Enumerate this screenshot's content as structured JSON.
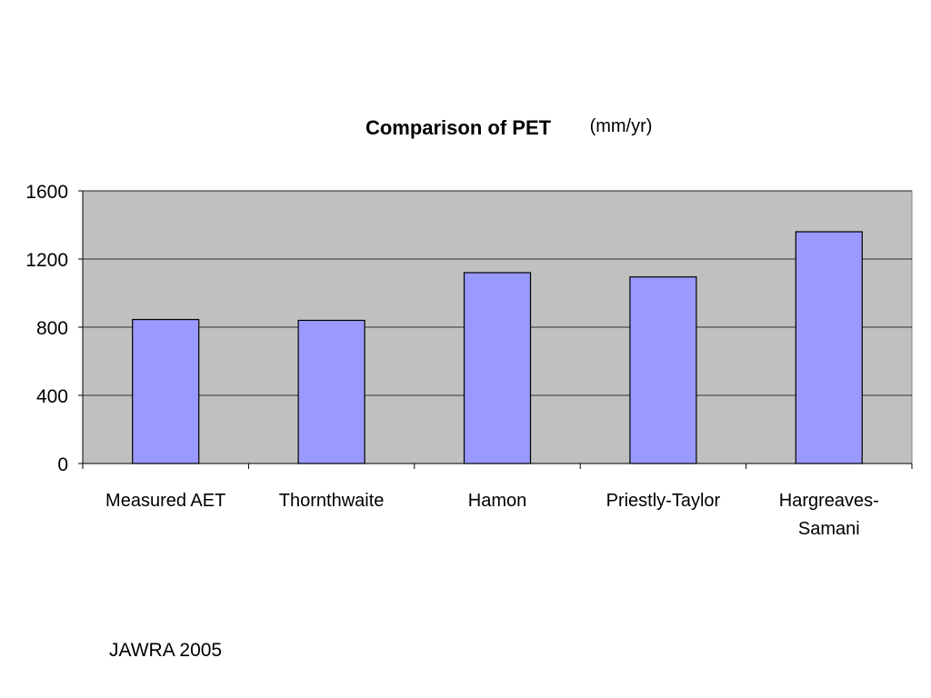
{
  "chart_data": {
    "type": "bar",
    "title": "Comparison of PET",
    "title_units": "(mm/yr)",
    "categories": [
      [
        "Measured AET"
      ],
      [
        "Thornthwaite"
      ],
      [
        "Hamon"
      ],
      [
        "Priestly-Taylor"
      ],
      [
        "Hargreaves-",
        "Samani"
      ]
    ],
    "values": [
      845,
      840,
      1120,
      1095,
      1360
    ],
    "ylim": [
      0,
      1600
    ],
    "yticks": [
      "0",
      "400",
      "800",
      "1200",
      "1600"
    ],
    "grid": true,
    "legend": "none",
    "colors": {
      "bar": "#9999ff",
      "plot_background": "#c0c0c0",
      "gridline": "#000000"
    }
  },
  "footer": {
    "source": "JAWRA 2005"
  }
}
